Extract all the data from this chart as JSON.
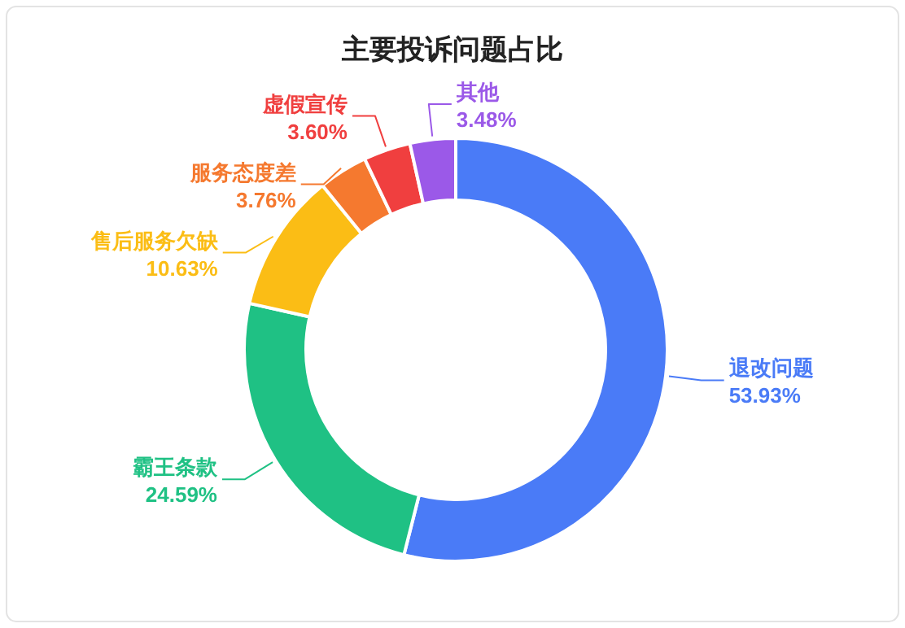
{
  "chart_data": {
    "type": "donut",
    "title": "主要投诉问题占比",
    "categories": [
      "退改问题",
      "霸王条款",
      "售后服务欠缺",
      "服务态度差",
      "虚假宣传",
      "其他"
    ],
    "values": [
      53.93,
      24.59,
      10.63,
      3.76,
      3.6,
      3.48
    ],
    "value_labels": [
      "53.93%",
      "24.59%",
      "10.63%",
      "3.76%",
      "3.60%",
      "3.48%"
    ],
    "colors": [
      "#4a7bf7",
      "#1fc184",
      "#fbbd15",
      "#f5792f",
      "#f03f3f",
      "#9b59e8"
    ]
  }
}
